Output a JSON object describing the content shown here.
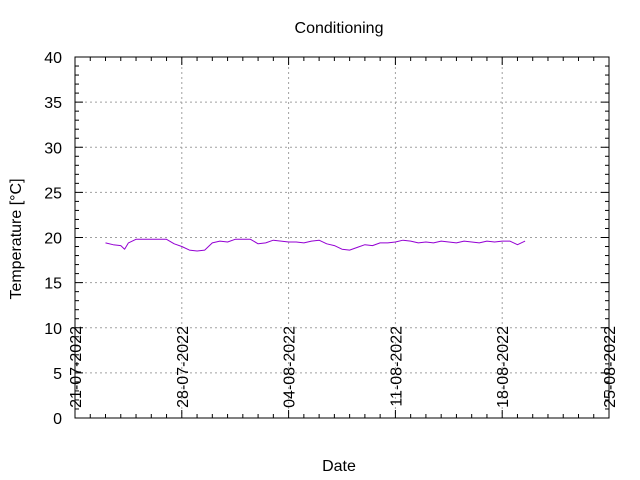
{
  "chart_data": {
    "type": "line",
    "title": "Conditioning",
    "xlabel": "Date",
    "ylabel": "Temperature [°C]",
    "ylim": [
      0,
      40
    ],
    "y_ticks": [
      "0",
      "5",
      "10",
      "15",
      "20",
      "25",
      "30",
      "35",
      "40"
    ],
    "xlim": [
      "2022-07-21",
      "2022-08-25"
    ],
    "x_ticks": [
      "21-07-2022",
      "28-07-2022",
      "04-08-2022",
      "11-08-2022",
      "18-08-2022",
      "25-08-2022"
    ],
    "grid": true,
    "line_color": "#9400d3",
    "series": [
      {
        "x": [
          "2022-07-23T00:00",
          "2022-07-23T12:00",
          "2022-07-24T00:00",
          "2022-07-24T06:00",
          "2022-07-24T12:00",
          "2022-07-25T00:00",
          "2022-07-25T12:00",
          "2022-07-26T00:00",
          "2022-07-26T12:00",
          "2022-07-27T00:00",
          "2022-07-27T12:00",
          "2022-07-28T00:00",
          "2022-07-28T12:00",
          "2022-07-29T00:00",
          "2022-07-29T12:00",
          "2022-07-30T00:00",
          "2022-07-30T12:00",
          "2022-07-31T00:00",
          "2022-07-31T12:00",
          "2022-08-01T00:00",
          "2022-08-01T12:00",
          "2022-08-02T00:00",
          "2022-08-02T12:00",
          "2022-08-03T00:00",
          "2022-08-03T12:00",
          "2022-08-04T00:00",
          "2022-08-04T12:00",
          "2022-08-05T00:00",
          "2022-08-05T12:00",
          "2022-08-06T00:00",
          "2022-08-06T12:00",
          "2022-08-07T00:00",
          "2022-08-07T12:00",
          "2022-08-08T00:00",
          "2022-08-08T12:00",
          "2022-08-09T00:00",
          "2022-08-09T12:00",
          "2022-08-10T00:00",
          "2022-08-10T12:00",
          "2022-08-11T00:00",
          "2022-08-11T12:00",
          "2022-08-12T00:00",
          "2022-08-12T12:00",
          "2022-08-13T00:00",
          "2022-08-13T12:00",
          "2022-08-14T00:00",
          "2022-08-14T12:00",
          "2022-08-15T00:00",
          "2022-08-15T12:00",
          "2022-08-16T00:00",
          "2022-08-16T12:00",
          "2022-08-17T00:00",
          "2022-08-17T12:00",
          "2022-08-18T00:00",
          "2022-08-18T12:00",
          "2022-08-19T00:00",
          "2022-08-19T12:00"
        ],
        "y": [
          19.4,
          19.2,
          19.1,
          18.7,
          19.4,
          19.8,
          19.8,
          19.8,
          19.8,
          19.8,
          19.3,
          19.0,
          18.6,
          18.5,
          18.6,
          19.4,
          19.6,
          19.5,
          19.8,
          19.8,
          19.8,
          19.3,
          19.4,
          19.7,
          19.6,
          19.5,
          19.5,
          19.4,
          19.6,
          19.7,
          19.3,
          19.1,
          18.7,
          18.6,
          18.9,
          19.2,
          19.1,
          19.4,
          19.4,
          19.5,
          19.7,
          19.6,
          19.4,
          19.5,
          19.4,
          19.6,
          19.5,
          19.4,
          19.6,
          19.5,
          19.4,
          19.6,
          19.5,
          19.6,
          19.6,
          19.2,
          19.6
        ]
      }
    ]
  }
}
